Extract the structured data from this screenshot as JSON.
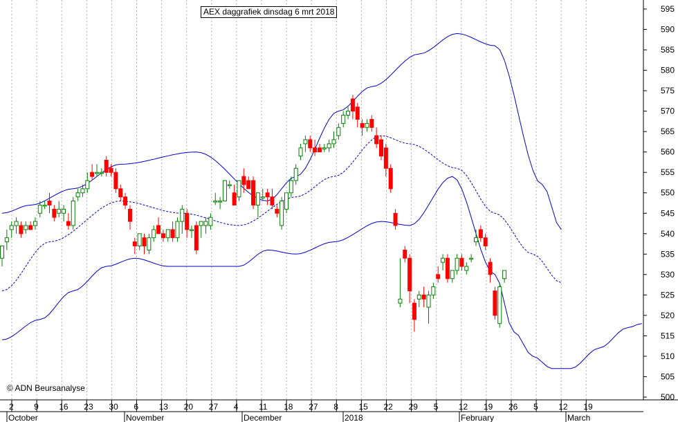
{
  "header": {
    "title": "AEX daggrafiek dinsdag 6 mrt 2018"
  },
  "footer": {
    "copyright": "© ADN Beursanalyse"
  },
  "colors": {
    "up": "#008000",
    "down": "#ff0000",
    "band": "#0000cc",
    "grid": "#b0b0b0",
    "axis": "#000000"
  },
  "chart_data": {
    "type": "candlestick",
    "title": "AEX daggrafiek dinsdag 6 mrt 2018",
    "ylim": [
      500,
      595
    ],
    "y_ticks": [
      500,
      505,
      510,
      515,
      520,
      525,
      530,
      535,
      540,
      545,
      550,
      555,
      560,
      565,
      570,
      575,
      580,
      585,
      590,
      595
    ],
    "grid": true,
    "x_tick_labels": [
      "2",
      "9",
      "16",
      "23",
      "30",
      "6",
      "13",
      "20",
      "27",
      "4",
      "11",
      "18",
      "27",
      "8",
      "15",
      "22",
      "29",
      "5",
      "12",
      "19",
      "26",
      "5",
      "12",
      "19"
    ],
    "x_month_labels": [
      "October",
      "November",
      "December",
      "2018",
      "February",
      "March"
    ],
    "candles": [
      {
        "o": 534,
        "h": 537,
        "l": 532,
        "c": 537
      },
      {
        "o": 538,
        "h": 541,
        "l": 536,
        "c": 539
      },
      {
        "o": 541,
        "h": 543,
        "l": 539,
        "c": 542
      },
      {
        "o": 542,
        "h": 544,
        "l": 540,
        "c": 543
      },
      {
        "o": 542,
        "h": 543,
        "l": 539,
        "c": 540
      },
      {
        "o": 541,
        "h": 543,
        "l": 540,
        "c": 542
      },
      {
        "o": 542,
        "h": 543,
        "l": 541,
        "c": 541
      },
      {
        "o": 542,
        "h": 544,
        "l": 541,
        "c": 543
      },
      {
        "o": 545,
        "h": 548,
        "l": 544,
        "c": 547
      },
      {
        "o": 547,
        "h": 548,
        "l": 546,
        "c": 547
      },
      {
        "o": 548,
        "h": 550,
        "l": 545,
        "c": 547
      },
      {
        "o": 546,
        "h": 547,
        "l": 543,
        "c": 544
      },
      {
        "o": 545,
        "h": 548,
        "l": 544,
        "c": 546
      },
      {
        "o": 545,
        "h": 547,
        "l": 543,
        "c": 546
      },
      {
        "o": 543,
        "h": 545,
        "l": 541,
        "c": 542
      },
      {
        "o": 542,
        "h": 549,
        "l": 541,
        "c": 548
      },
      {
        "o": 549,
        "h": 551,
        "l": 548,
        "c": 550
      },
      {
        "o": 550,
        "h": 552,
        "l": 549,
        "c": 551
      },
      {
        "o": 551,
        "h": 555,
        "l": 550,
        "c": 553
      },
      {
        "o": 555,
        "h": 557,
        "l": 553,
        "c": 554
      },
      {
        "o": 555,
        "h": 557,
        "l": 554,
        "c": 555
      },
      {
        "o": 555,
        "h": 556,
        "l": 554,
        "c": 555
      },
      {
        "o": 558,
        "h": 559,
        "l": 554,
        "c": 555
      },
      {
        "o": 556,
        "h": 557,
        "l": 554,
        "c": 555
      },
      {
        "o": 555,
        "h": 556,
        "l": 550,
        "c": 551
      },
      {
        "o": 551,
        "h": 552,
        "l": 548,
        "c": 549
      },
      {
        "o": 549,
        "h": 550,
        "l": 546,
        "c": 547
      },
      {
        "o": 546,
        "h": 547,
        "l": 541,
        "c": 543
      },
      {
        "o": 538,
        "h": 539,
        "l": 535,
        "c": 537
      },
      {
        "o": 537,
        "h": 540,
        "l": 536,
        "c": 540
      },
      {
        "o": 539,
        "h": 540,
        "l": 535,
        "c": 537
      },
      {
        "o": 536,
        "h": 540,
        "l": 535,
        "c": 539
      },
      {
        "o": 539,
        "h": 542,
        "l": 538,
        "c": 541
      },
      {
        "o": 542,
        "h": 544,
        "l": 540,
        "c": 540
      },
      {
        "o": 540,
        "h": 541,
        "l": 538,
        "c": 539
      },
      {
        "o": 539,
        "h": 541,
        "l": 538,
        "c": 541
      },
      {
        "o": 541,
        "h": 543,
        "l": 538,
        "c": 539
      },
      {
        "o": 539,
        "h": 544,
        "l": 538,
        "c": 543
      },
      {
        "o": 543,
        "h": 547,
        "l": 540,
        "c": 546
      },
      {
        "o": 545,
        "h": 546,
        "l": 539,
        "c": 541
      },
      {
        "o": 541,
        "h": 542,
        "l": 539,
        "c": 541
      },
      {
        "o": 542,
        "h": 543,
        "l": 535,
        "c": 536
      },
      {
        "o": 542,
        "h": 543,
        "l": 539,
        "c": 543
      },
      {
        "o": 542,
        "h": 544,
        "l": 540,
        "c": 543
      },
      {
        "o": 542,
        "h": 545,
        "l": 541,
        "c": 544
      },
      {
        "o": 548,
        "h": 550,
        "l": 547,
        "c": 548
      },
      {
        "o": 548,
        "h": 549,
        "l": 546,
        "c": 548
      },
      {
        "o": 548,
        "h": 553,
        "l": 548,
        "c": 553
      },
      {
        "o": 552,
        "h": 553,
        "l": 551,
        "c": 552
      },
      {
        "o": 550,
        "h": 552,
        "l": 547,
        "c": 547
      },
      {
        "o": 549,
        "h": 553,
        "l": 548,
        "c": 553
      },
      {
        "o": 554,
        "h": 556,
        "l": 550,
        "c": 552
      },
      {
        "o": 553,
        "h": 554,
        "l": 551,
        "c": 551
      },
      {
        "o": 553,
        "h": 554,
        "l": 546,
        "c": 547
      },
      {
        "o": 547,
        "h": 550,
        "l": 544,
        "c": 550
      },
      {
        "o": 549,
        "h": 551,
        "l": 548,
        "c": 549
      },
      {
        "o": 550,
        "h": 551,
        "l": 547,
        "c": 549
      },
      {
        "o": 549,
        "h": 551,
        "l": 546,
        "c": 547
      },
      {
        "o": 546,
        "h": 547,
        "l": 544,
        "c": 545
      },
      {
        "o": 542,
        "h": 549,
        "l": 541,
        "c": 548
      },
      {
        "o": 546,
        "h": 550,
        "l": 545,
        "c": 550
      },
      {
        "o": 550,
        "h": 554,
        "l": 549,
        "c": 553
      },
      {
        "o": 553,
        "h": 557,
        "l": 552,
        "c": 556
      },
      {
        "o": 559,
        "h": 562,
        "l": 558,
        "c": 561
      },
      {
        "o": 562,
        "h": 564,
        "l": 560,
        "c": 563
      },
      {
        "o": 563,
        "h": 564,
        "l": 560,
        "c": 561
      },
      {
        "o": 561,
        "h": 563,
        "l": 559,
        "c": 560
      },
      {
        "o": 561,
        "h": 562,
        "l": 560,
        "c": 560
      },
      {
        "o": 561,
        "h": 562,
        "l": 560,
        "c": 561
      },
      {
        "o": 561,
        "h": 563,
        "l": 560,
        "c": 562
      },
      {
        "o": 562,
        "h": 565,
        "l": 561,
        "c": 563
      },
      {
        "o": 564,
        "h": 567,
        "l": 563,
        "c": 566
      },
      {
        "o": 567,
        "h": 570,
        "l": 566,
        "c": 569
      },
      {
        "o": 569,
        "h": 571,
        "l": 568,
        "c": 570
      },
      {
        "o": 573,
        "h": 574,
        "l": 568,
        "c": 570
      },
      {
        "o": 571,
        "h": 572,
        "l": 566,
        "c": 568
      },
      {
        "o": 567,
        "h": 568,
        "l": 564,
        "c": 566
      },
      {
        "o": 566,
        "h": 568,
        "l": 565,
        "c": 567
      },
      {
        "o": 568,
        "h": 569,
        "l": 565,
        "c": 566
      },
      {
        "o": 564,
        "h": 566,
        "l": 561,
        "c": 562
      },
      {
        "o": 563,
        "h": 564,
        "l": 558,
        "c": 559
      },
      {
        "o": 561,
        "h": 562,
        "l": 554,
        "c": 556
      },
      {
        "o": 556,
        "h": 557,
        "l": 550,
        "c": 551
      },
      {
        "o": 545,
        "h": 546,
        "l": 541,
        "c": 542
      },
      {
        "o": 523,
        "h": 534,
        "l": 522,
        "c": 524
      },
      {
        "o": 536,
        "h": 537,
        "l": 533,
        "c": 534
      },
      {
        "o": 534,
        "h": 535,
        "l": 523,
        "c": 526
      },
      {
        "o": 523,
        "h": 524,
        "l": 516,
        "c": 519
      },
      {
        "o": 524,
        "h": 526,
        "l": 522,
        "c": 525
      },
      {
        "o": 525,
        "h": 527,
        "l": 522,
        "c": 524
      },
      {
        "o": 522,
        "h": 526,
        "l": 518,
        "c": 525
      },
      {
        "o": 525,
        "h": 528,
        "l": 524,
        "c": 527
      },
      {
        "o": 530,
        "h": 532,
        "l": 528,
        "c": 529
      },
      {
        "o": 533,
        "h": 535,
        "l": 531,
        "c": 534
      },
      {
        "o": 534,
        "h": 535,
        "l": 528,
        "c": 529
      },
      {
        "o": 529,
        "h": 531,
        "l": 528,
        "c": 531
      },
      {
        "o": 531,
        "h": 535,
        "l": 530,
        "c": 534
      },
      {
        "o": 534,
        "h": 535,
        "l": 531,
        "c": 532
      },
      {
        "o": 531,
        "h": 533,
        "l": 530,
        "c": 532
      },
      {
        "o": 534,
        "h": 535,
        "l": 533,
        "c": 534
      },
      {
        "o": 538,
        "h": 541,
        "l": 537,
        "c": 539
      },
      {
        "o": 541,
        "h": 542,
        "l": 538,
        "c": 539
      },
      {
        "o": 539,
        "h": 540,
        "l": 536,
        "c": 537
      },
      {
        "o": 533,
        "h": 534,
        "l": 528,
        "c": 530
      },
      {
        "o": 526,
        "h": 527,
        "l": 519,
        "c": 520
      },
      {
        "o": 518,
        "h": 528,
        "l": 517,
        "c": 527
      },
      {
        "o": 529,
        "h": 531,
        "l": 528,
        "c": 531
      }
    ],
    "bollinger": {
      "upper_anchors": [
        [
          0,
          545
        ],
        [
          6,
          547
        ],
        [
          15,
          551
        ],
        [
          25,
          557
        ],
        [
          41,
          560
        ],
        [
          56,
          548
        ],
        [
          62,
          554
        ],
        [
          71,
          570
        ],
        [
          78,
          576
        ],
        [
          88,
          584
        ],
        [
          96,
          589
        ],
        [
          104,
          586
        ],
        [
          114,
          552
        ],
        [
          118,
          541
        ]
      ],
      "middle_anchors": [
        [
          0,
          526
        ],
        [
          10,
          538
        ],
        [
          25,
          548
        ],
        [
          38,
          545
        ],
        [
          50,
          542
        ],
        [
          62,
          549
        ],
        [
          70,
          554
        ],
        [
          80,
          564
        ],
        [
          86,
          562
        ],
        [
          96,
          556
        ],
        [
          104,
          545
        ],
        [
          112,
          535
        ],
        [
          118,
          528
        ]
      ],
      "lower_anchors": [
        [
          0,
          514
        ],
        [
          8,
          519
        ],
        [
          15,
          526
        ],
        [
          22,
          532
        ],
        [
          28,
          534
        ],
        [
          35,
          532
        ],
        [
          50,
          532
        ],
        [
          56,
          536
        ],
        [
          62,
          535
        ],
        [
          70,
          538
        ],
        [
          80,
          543
        ],
        [
          86,
          542
        ],
        [
          95,
          554
        ],
        [
          104,
          530
        ],
        [
          108,
          516
        ],
        [
          112,
          510
        ],
        [
          116,
          507
        ],
        [
          120,
          507
        ],
        [
          126,
          512
        ],
        [
          132,
          517
        ],
        [
          135,
          518
        ]
      ]
    }
  }
}
